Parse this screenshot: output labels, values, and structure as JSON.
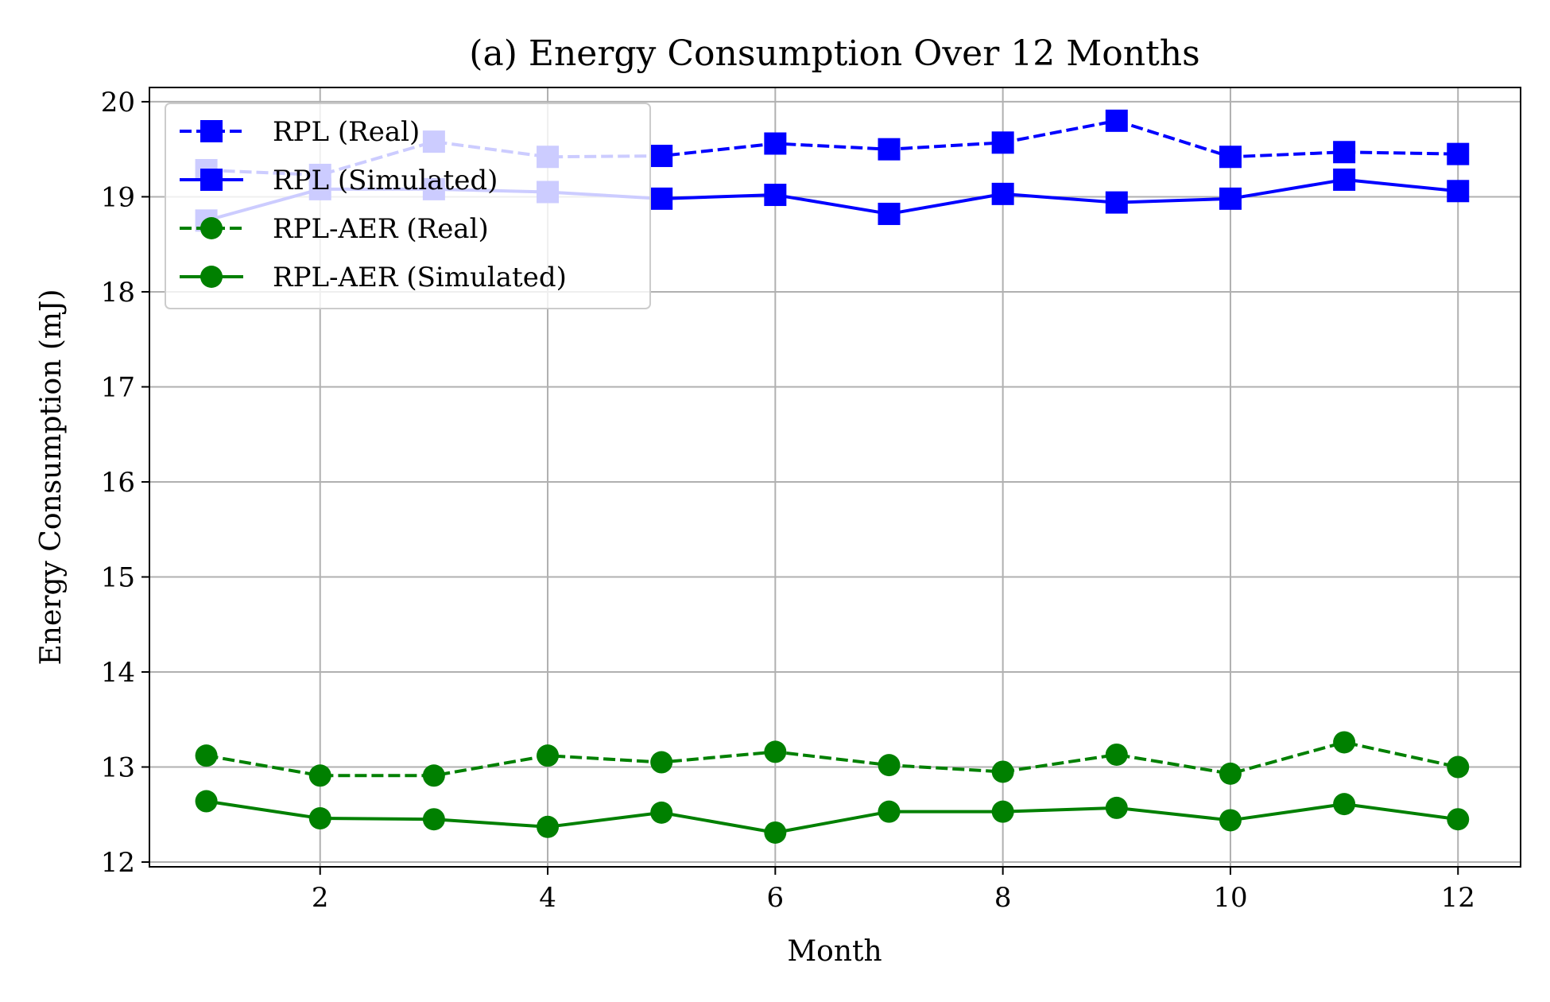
{
  "chart_data": {
    "type": "line",
    "title": "(a) Energy Consumption Over 12 Months",
    "xlabel": "Month",
    "ylabel": "Energy Consumption (mJ)",
    "xlim": [
      0.5,
      12.55
    ],
    "ylim": [
      11.95,
      20.15
    ],
    "x_ticks": [
      "2",
      "4",
      "6",
      "8",
      "10",
      "12"
    ],
    "y_ticks": [
      "12",
      "13",
      "14",
      "15",
      "16",
      "17",
      "18",
      "19",
      "20"
    ],
    "grid": true,
    "legend_position": "upper-left",
    "x": [
      1,
      2,
      3,
      4,
      5,
      6,
      7,
      8,
      9,
      10,
      11,
      12
    ],
    "series": [
      {
        "name": "RPL (Real)",
        "color": "#0000ff",
        "linestyle": "dashed",
        "marker": "square",
        "values": [
          19.28,
          19.23,
          19.58,
          19.42,
          19.43,
          19.56,
          19.5,
          19.57,
          19.8,
          19.42,
          19.47,
          19.45
        ]
      },
      {
        "name": "RPL (Simulated)",
        "color": "#0000ff",
        "linestyle": "solid",
        "marker": "square",
        "values": [
          18.75,
          19.08,
          19.08,
          19.05,
          18.98,
          19.02,
          18.82,
          19.03,
          18.94,
          18.98,
          19.18,
          19.06
        ]
      },
      {
        "name": "RPL-AER (Real)",
        "color": "#008000",
        "linestyle": "dashed",
        "marker": "circle",
        "values": [
          13.12,
          12.91,
          12.91,
          13.12,
          13.05,
          13.16,
          13.02,
          12.95,
          13.13,
          12.93,
          13.26,
          13.0
        ]
      },
      {
        "name": "RPL-AER (Simulated)",
        "color": "#008000",
        "linestyle": "solid",
        "marker": "circle",
        "values": [
          12.64,
          12.46,
          12.45,
          12.37,
          12.52,
          12.31,
          12.53,
          12.53,
          12.57,
          12.44,
          12.61,
          12.45
        ]
      }
    ]
  }
}
